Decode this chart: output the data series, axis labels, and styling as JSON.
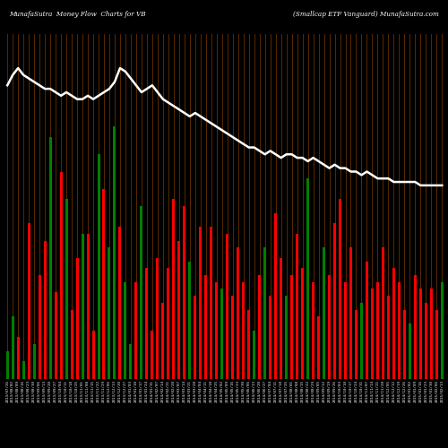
{
  "title_left": "MunafaSutra  Money Flow  Charts for VB",
  "title_right": "(Smallcap ETF Vanguard) MunafaSutra.com",
  "background_color": "#000000",
  "bar_colors": [
    "green",
    "green",
    "red",
    "green",
    "red",
    "green",
    "red",
    "red",
    "green",
    "red",
    "red",
    "green",
    "red",
    "red",
    "green",
    "red",
    "red",
    "green",
    "red",
    "green",
    "green",
    "red",
    "green",
    "green",
    "red",
    "green",
    "red",
    "red",
    "red",
    "red",
    "red",
    "red",
    "red",
    "red",
    "green",
    "red",
    "red",
    "red",
    "red",
    "red",
    "green",
    "red",
    "red",
    "red",
    "red",
    "red",
    "green",
    "red",
    "green",
    "red",
    "red",
    "red",
    "green",
    "red",
    "red",
    "red",
    "green",
    "red",
    "red",
    "green",
    "red",
    "red",
    "red",
    "red",
    "red",
    "red",
    "green",
    "red",
    "red",
    "red",
    "red",
    "red",
    "red",
    "red",
    "red",
    "green",
    "red",
    "red",
    "red",
    "red",
    "red",
    "green"
  ],
  "bar_heights": [
    8,
    18,
    12,
    5,
    45,
    10,
    30,
    40,
    70,
    25,
    60,
    52,
    20,
    35,
    42,
    42,
    14,
    65,
    55,
    38,
    73,
    44,
    28,
    10,
    28,
    50,
    32,
    14,
    35,
    22,
    32,
    52,
    40,
    50,
    34,
    24,
    44,
    30,
    44,
    28,
    26,
    42,
    24,
    38,
    28,
    20,
    14,
    30,
    38,
    24,
    48,
    35,
    24,
    30,
    42,
    32,
    58,
    28,
    18,
    38,
    30,
    45,
    52,
    28,
    38,
    20,
    22,
    34,
    26,
    28,
    38,
    24,
    32,
    28,
    20,
    16,
    30,
    26,
    22,
    26,
    20,
    28
  ],
  "line_values": [
    85,
    88,
    90,
    88,
    87,
    86,
    85,
    84,
    84,
    83,
    82,
    83,
    82,
    81,
    81,
    82,
    81,
    82,
    83,
    84,
    86,
    90,
    89,
    87,
    85,
    83,
    84,
    85,
    83,
    81,
    80,
    79,
    78,
    77,
    76,
    77,
    76,
    75,
    74,
    73,
    72,
    71,
    70,
    69,
    68,
    67,
    67,
    66,
    65,
    66,
    65,
    64,
    65,
    65,
    64,
    64,
    63,
    64,
    63,
    62,
    61,
    62,
    61,
    61,
    60,
    60,
    59,
    60,
    59,
    58,
    58,
    58,
    57,
    57,
    57,
    57,
    57,
    56,
    56,
    56,
    56,
    56
  ],
  "line_color": "#ffffff",
  "grid_color": "#7B3A00",
  "n_bars": 82,
  "labels": [
    "2013/07/26",
    "2013/08/02",
    "2013/08/09",
    "2013/08/16",
    "2013/08/23",
    "2013/08/30",
    "2013/09/06",
    "2013/09/13",
    "2013/09/20",
    "2013/09/27",
    "2013/10/04",
    "2013/10/11",
    "2013/10/18",
    "2013/10/25",
    "2013/11/01",
    "2013/11/08",
    "2013/11/15",
    "2013/11/22",
    "2013/11/29",
    "2013/12/06",
    "2013/12/13",
    "2013/12/20",
    "2013/12/27",
    "2014/01/03",
    "2014/01/10",
    "2014/01/17",
    "2014/01/24",
    "2014/01/31",
    "2014/02/07",
    "2014/02/14",
    "2014/02/21",
    "2014/02/28",
    "2014/03/07",
    "2014/03/14",
    "2014/03/21",
    "2014/03/28",
    "2014/04/04",
    "2014/04/11",
    "2014/04/18",
    "2014/04/25",
    "2014/05/02",
    "2014/05/09",
    "2014/05/16",
    "2014/05/23",
    "2014/05/30",
    "2014/06/06",
    "2014/06/13",
    "2014/06/20",
    "2014/06/27",
    "2014/07/04",
    "2014/07/11",
    "2014/07/18",
    "2014/07/25",
    "2014/08/01",
    "2014/08/08",
    "2014/08/15",
    "2014/08/22",
    "2014/08/29",
    "2014/09/05",
    "2014/09/12",
    "2014/09/19",
    "2014/09/26",
    "2014/10/03",
    "2014/10/10",
    "2014/10/17",
    "2014/10/24",
    "2014/10/31",
    "2014/11/07",
    "2014/11/14",
    "2014/11/21",
    "2014/11/28",
    "2014/12/05",
    "2014/12/12",
    "2014/12/19",
    "2014/12/26",
    "2015/01/02",
    "2015/01/09",
    "2015/01/16",
    "2015/01/23",
    "2015/01/30",
    "2015/02/06",
    "2015/02/13"
  ]
}
